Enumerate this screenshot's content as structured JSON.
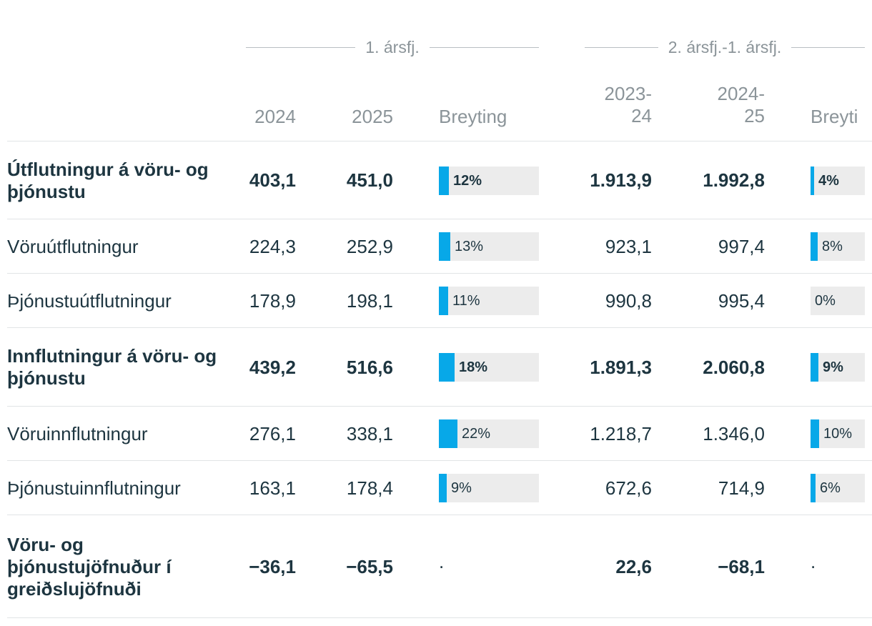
{
  "groups": {
    "q1": "1. ársfj.",
    "q2q1": "2. ársfj.-1. ársfj."
  },
  "columns": {
    "y2024": "2024",
    "y2025": "2025",
    "change1": "Breyting",
    "y2023_24": "2023-\n24",
    "y2024_25": "2024-\n25",
    "change2": "Breyti"
  },
  "colors": {
    "bar": "#07a8e8",
    "bar_bg": "#ececec",
    "text": "#1d3540",
    "muted": "#8b9499"
  },
  "rows": [
    {
      "name": "Útflutningur á vöru- og þjónustu",
      "bold": true,
      "v2024": "403,1",
      "v2025": "451,0",
      "change1": "12%",
      "change1_pct": 12,
      "v2023_24": "1.913,9",
      "v2024_25": "1.992,8",
      "change2": "4%",
      "change2_pct": 4
    },
    {
      "name": "Vöruútflutningur",
      "bold": false,
      "v2024": "224,3",
      "v2025": "252,9",
      "change1": "13%",
      "change1_pct": 13,
      "v2023_24": "923,1",
      "v2024_25": "997,4",
      "change2": "8%",
      "change2_pct": 8
    },
    {
      "name": "Þjónustuútflutningur",
      "bold": false,
      "v2024": "178,9",
      "v2025": "198,1",
      "change1": "11%",
      "change1_pct": 11,
      "v2023_24": "990,8",
      "v2024_25": "995,4",
      "change2": "0%",
      "change2_pct": 0
    },
    {
      "name": "Innflutningur á vöru- og þjónustu",
      "bold": true,
      "v2024": "439,2",
      "v2025": "516,6",
      "change1": "18%",
      "change1_pct": 18,
      "v2023_24": "1.891,3",
      "v2024_25": "2.060,8",
      "change2": "9%",
      "change2_pct": 9
    },
    {
      "name": "Vöruinnflutningur",
      "bold": false,
      "v2024": "276,1",
      "v2025": "338,1",
      "change1": "22%",
      "change1_pct": 22,
      "v2023_24": "1.218,7",
      "v2024_25": "1.346,0",
      "change2": "10%",
      "change2_pct": 10
    },
    {
      "name": "Þjónustuinnflutningur",
      "bold": false,
      "v2024": "163,1",
      "v2025": "178,4",
      "change1": "9%",
      "change1_pct": 9,
      "v2023_24": "672,6",
      "v2024_25": "714,9",
      "change2": "6%",
      "change2_pct": 6
    },
    {
      "name": "Vöru- og þjónustujöfnuður í greiðslujöfnuði",
      "bold": true,
      "v2024": "−36,1",
      "v2025": "−65,5",
      "change1": ".",
      "change1_pct": null,
      "v2023_24": "22,6",
      "v2024_25": "−68,1",
      "change2": ".",
      "change2_pct": null
    }
  ]
}
